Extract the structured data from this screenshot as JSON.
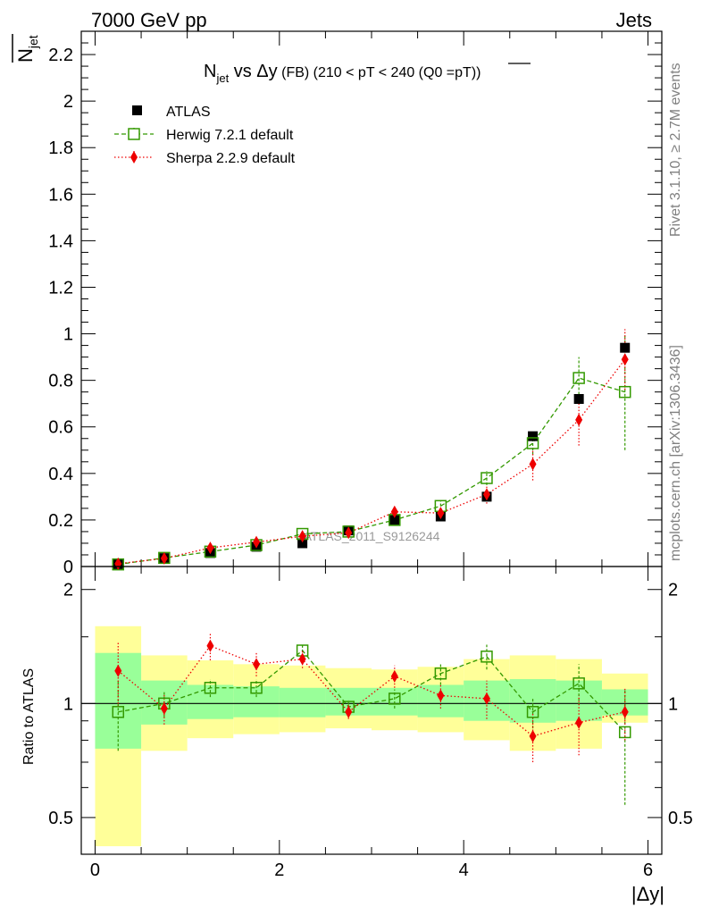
{
  "header": {
    "left": "7000 GeV pp",
    "right": "Jets",
    "ytitle": "N",
    "ytitle_sub": "jet"
  },
  "side_labels": {
    "rivet": "Rivet 3.1.10, ≥ 2.7M events",
    "mcplots": "mcplots.cern.ch [arXiv:1306.3436]"
  },
  "chart_data": [
    {
      "type": "scatter",
      "title": "N",
      "title_sub": "jet",
      "title_rest": " vs Δy",
      "title_small": " (FB)",
      "title_tail": " (210 < pT < 240 (Q0 =",
      "title_over": "pT",
      "title_end": "))",
      "ylabel": "N",
      "ylabel_sub": "jet",
      "xlim": [
        -0.15,
        6.15
      ],
      "ylim": [
        0,
        2.3
      ],
      "yticks": [
        "0",
        "0.2",
        "0.4",
        "0.6",
        "0.8",
        "1",
        "1.2",
        "1.4",
        "1.6",
        "1.8",
        "2",
        "2.2"
      ],
      "watermark": "ATLAS_2011_S9126244",
      "legend_position": "top-left",
      "x": [
        0.25,
        0.75,
        1.25,
        1.75,
        2.25,
        2.75,
        3.25,
        3.75,
        4.25,
        4.75,
        5.25,
        5.75
      ],
      "series": [
        {
          "name": "ATLAS",
          "color": "#000000",
          "marker": "filled-square",
          "values": [
            0.01,
            0.036,
            0.058,
            0.085,
            0.1,
            0.155,
            0.2,
            0.215,
            0.3,
            0.56,
            0.72,
            0.94
          ]
        },
        {
          "name": "Herwig 7.2.1 default",
          "color": "#339900",
          "marker": "open-square",
          "line": "dashed",
          "values": [
            0.009,
            0.037,
            0.064,
            0.092,
            0.14,
            0.15,
            0.2,
            0.26,
            0.38,
            0.53,
            0.81,
            0.75
          ],
          "errors": [
            0.003,
            0.004,
            0.005,
            0.008,
            0.01,
            0.01,
            0.015,
            0.02,
            0.03,
            0.05,
            0.09,
            0.25
          ]
        },
        {
          "name": "Sherpa 2.2.9 default",
          "color": "#ee0000",
          "marker": "filled-diamond",
          "line": "dotted",
          "values": [
            0.012,
            0.035,
            0.08,
            0.105,
            0.13,
            0.145,
            0.235,
            0.23,
            0.31,
            0.44,
            0.63,
            0.89
          ],
          "errors": [
            0.003,
            0.004,
            0.006,
            0.01,
            0.012,
            0.012,
            0.02,
            0.02,
            0.04,
            0.07,
            0.11,
            0.13
          ]
        }
      ]
    },
    {
      "type": "scatter",
      "ylabel": "Ratio to ATLAS",
      "xlabel": "|Δy|",
      "xlim": [
        -0.15,
        6.15
      ],
      "ylim": [
        0.4,
        2.3
      ],
      "log_y": true,
      "xticks": [
        "0",
        "2",
        "4",
        "6"
      ],
      "yticks": [
        "0.5",
        "1",
        "2"
      ],
      "x": [
        0.25,
        0.75,
        1.25,
        1.75,
        2.25,
        2.75,
        3.25,
        3.75,
        4.25,
        4.75,
        5.25,
        5.75
      ],
      "bands": {
        "bins": [
          0,
          0.5,
          1,
          1.5,
          2,
          2.5,
          3,
          3.5,
          4,
          4.5,
          5,
          5.5,
          6
        ],
        "yellow_lo": [
          0.42,
          0.75,
          0.81,
          0.83,
          0.84,
          0.86,
          0.85,
          0.84,
          0.8,
          0.75,
          0.76,
          0.89
        ],
        "yellow_hi": [
          1.6,
          1.34,
          1.3,
          1.27,
          1.26,
          1.24,
          1.23,
          1.25,
          1.31,
          1.34,
          1.31,
          1.2
        ],
        "green_lo": [
          0.76,
          0.88,
          0.91,
          0.92,
          0.92,
          0.93,
          0.93,
          0.92,
          0.9,
          0.89,
          0.9,
          0.93
        ],
        "green_hi": [
          1.36,
          1.15,
          1.12,
          1.11,
          1.1,
          1.1,
          1.1,
          1.12,
          1.15,
          1.16,
          1.15,
          1.09
        ]
      },
      "series": [
        {
          "name": "Herwig 7.2.1 default",
          "color": "#339900",
          "values": [
            0.95,
            1.0,
            1.1,
            1.1,
            1.38,
            0.98,
            1.03,
            1.2,
            1.33,
            0.95,
            1.13,
            0.84
          ],
          "err_lo": [
            0.2,
            0.08,
            0.06,
            0.06,
            0.05,
            0.04,
            0.06,
            0.08,
            0.1,
            0.09,
            0.14,
            0.3
          ],
          "err_hi": [
            0.2,
            0.08,
            0.06,
            0.06,
            0.05,
            0.04,
            0.06,
            0.08,
            0.1,
            0.09,
            0.14,
            0.25
          ]
        },
        {
          "name": "Sherpa 2.2.9 default",
          "color": "#ee0000",
          "values": [
            1.22,
            0.97,
            1.42,
            1.27,
            1.31,
            0.95,
            1.18,
            1.05,
            1.03,
            0.82,
            0.89,
            0.95
          ],
          "err_lo": [
            0.24,
            0.09,
            0.12,
            0.09,
            0.07,
            0.04,
            0.08,
            0.08,
            0.12,
            0.12,
            0.16,
            0.15
          ],
          "err_hi": [
            0.24,
            0.09,
            0.12,
            0.09,
            0.07,
            0.04,
            0.08,
            0.08,
            0.12,
            0.12,
            0.16,
            0.15
          ]
        }
      ]
    }
  ]
}
